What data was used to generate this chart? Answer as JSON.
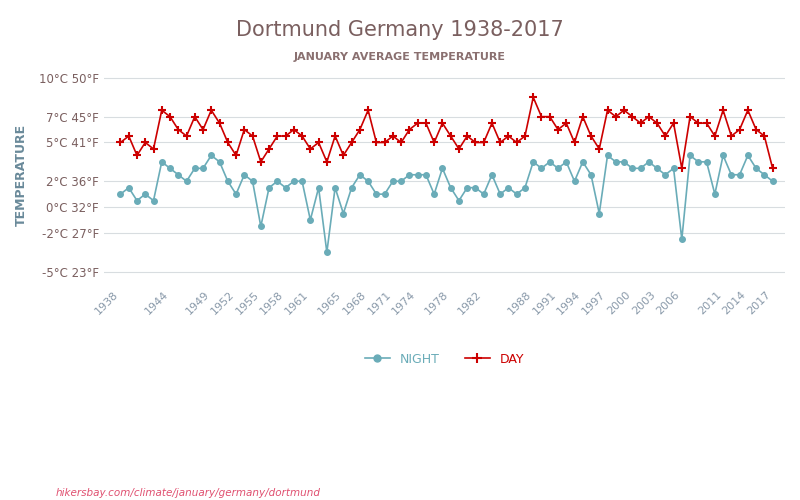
{
  "title": "Dortmund Germany 1938-2017",
  "subtitle": "JANUARY AVERAGE TEMPERATURE",
  "ylabel": "TEMPERATURE",
  "watermark": "hikersbay.com/climate/january/germany/dortmund",
  "years": [
    1938,
    1939,
    1940,
    1941,
    1942,
    1943,
    1944,
    1945,
    1946,
    1947,
    1948,
    1949,
    1950,
    1951,
    1952,
    1953,
    1954,
    1955,
    1956,
    1957,
    1958,
    1959,
    1960,
    1961,
    1962,
    1963,
    1964,
    1965,
    1966,
    1967,
    1968,
    1969,
    1970,
    1971,
    1972,
    1973,
    1974,
    1975,
    1976,
    1977,
    1978,
    1979,
    1980,
    1981,
    1982,
    1983,
    1984,
    1985,
    1986,
    1987,
    1988,
    1989,
    1990,
    1991,
    1992,
    1993,
    1994,
    1995,
    1996,
    1997,
    1998,
    1999,
    2000,
    2001,
    2002,
    2003,
    2004,
    2005,
    2006,
    2007,
    2008,
    2009,
    2010,
    2011,
    2012,
    2013,
    2014,
    2015,
    2016,
    2017
  ],
  "day_temps": [
    5.0,
    5.5,
    4.0,
    5.0,
    4.5,
    7.5,
    7.0,
    6.0,
    5.5,
    7.0,
    6.0,
    7.5,
    6.5,
    5.0,
    4.0,
    6.0,
    5.5,
    3.5,
    4.5,
    5.5,
    5.5,
    6.0,
    5.5,
    4.5,
    5.0,
    3.5,
    5.5,
    4.0,
    5.0,
    6.0,
    7.5,
    5.0,
    5.0,
    5.5,
    5.0,
    6.0,
    6.5,
    6.5,
    5.0,
    6.5,
    5.5,
    4.5,
    5.5,
    5.0,
    5.0,
    6.5,
    5.0,
    5.5,
    5.0,
    5.5,
    8.5,
    7.0,
    7.0,
    6.0,
    6.5,
    5.0,
    7.0,
    5.5,
    4.5,
    7.5,
    7.0,
    7.5,
    7.0,
    6.5,
    7.0,
    6.5,
    5.5,
    6.5,
    3.0,
    7.0,
    6.5,
    6.5,
    5.5,
    7.5,
    5.5,
    6.0,
    7.5,
    6.0,
    5.5,
    3.0
  ],
  "night_temps": [
    1.0,
    1.5,
    0.5,
    1.0,
    0.5,
    3.5,
    3.0,
    2.5,
    2.0,
    3.0,
    3.0,
    4.0,
    3.5,
    2.0,
    1.0,
    2.5,
    2.0,
    -1.5,
    1.5,
    2.0,
    1.5,
    2.0,
    2.0,
    -1.0,
    1.5,
    -3.5,
    1.5,
    -0.5,
    1.5,
    2.5,
    2.0,
    1.0,
    1.0,
    2.0,
    2.0,
    2.5,
    2.5,
    2.5,
    1.0,
    3.0,
    1.5,
    0.5,
    1.5,
    1.5,
    1.0,
    2.5,
    1.0,
    1.5,
    1.0,
    1.5,
    3.5,
    3.0,
    3.5,
    3.0,
    3.5,
    2.0,
    3.5,
    2.5,
    -0.5,
    4.0,
    3.5,
    3.5,
    3.0,
    3.0,
    3.5,
    3.0,
    2.5,
    3.0,
    -2.5,
    4.0,
    3.5,
    3.5,
    1.0,
    4.0,
    2.5,
    2.5,
    4.0,
    3.0,
    2.5,
    2.0
  ],
  "yticks_c": [
    10,
    7,
    5,
    2,
    0,
    -2,
    -5
  ],
  "yticks_f": [
    50,
    45,
    41,
    36,
    32,
    27,
    23
  ],
  "xtick_years": [
    1938,
    1944,
    1949,
    1952,
    1955,
    1958,
    1961,
    1965,
    1968,
    1971,
    1974,
    1978,
    1982,
    1988,
    1991,
    1994,
    1997,
    2000,
    2003,
    2006,
    2011,
    2014,
    2017
  ],
  "day_color": "#cc0000",
  "night_color": "#6aacb8",
  "title_color": "#7a5f5f",
  "subtitle_color": "#8a7070",
  "ylabel_color": "#6a8a9a",
  "tick_color": "#8a9aaa",
  "grid_color": "#d8dde0",
  "watermark_color": "#e05070",
  "background_color": "#ffffff",
  "ylim": [
    -6,
    11
  ],
  "figsize": [
    8.0,
    5.0
  ],
  "dpi": 100
}
